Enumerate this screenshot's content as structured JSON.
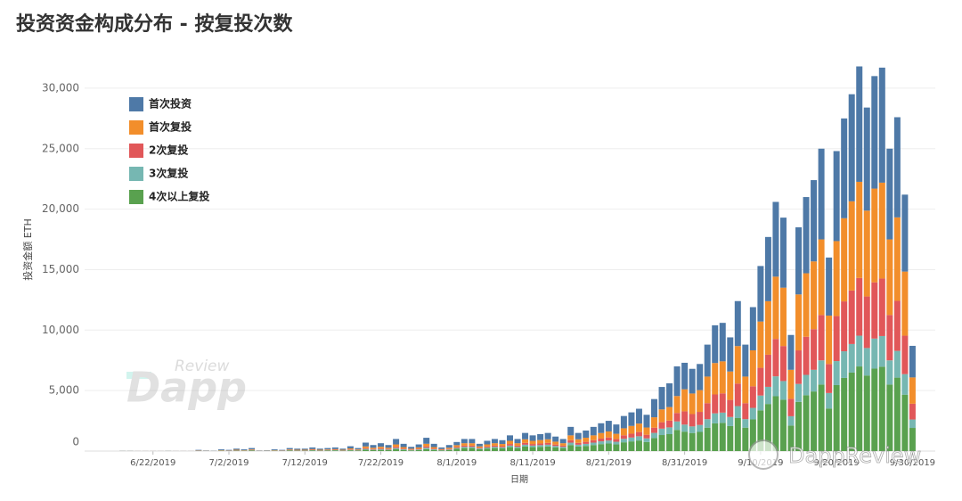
{
  "chart_data": {
    "type": "stacked-bar",
    "title": "投资资金构成分布 - 按复投次数",
    "x_label": "日期",
    "y_label": "投资金额 ETH",
    "watermarks": [
      "Review",
      "Dapp",
      "DappReview"
    ],
    "x": [
      "6/18/2019",
      "6/19/2019",
      "6/20/2019",
      "6/21/2019",
      "6/22/2019",
      "6/23/2019",
      "6/24/2019",
      "6/25/2019",
      "6/26/2019",
      "6/27/2019",
      "6/28/2019",
      "6/29/2019",
      "6/30/2019",
      "7/1/2019",
      "7/2/2019",
      "7/3/2019",
      "7/4/2019",
      "7/5/2019",
      "7/6/2019",
      "7/7/2019",
      "7/8/2019",
      "7/9/2019",
      "7/10/2019",
      "7/11/2019",
      "7/12/2019",
      "7/13/2019",
      "7/14/2019",
      "7/15/2019",
      "7/16/2019",
      "7/17/2019",
      "7/18/2019",
      "7/19/2019",
      "7/20/2019",
      "7/21/2019",
      "7/22/2019",
      "7/23/2019",
      "7/24/2019",
      "7/25/2019",
      "7/26/2019",
      "7/27/2019",
      "7/28/2019",
      "7/29/2019",
      "7/30/2019",
      "7/31/2019",
      "8/1/2019",
      "8/2/2019",
      "8/3/2019",
      "8/4/2019",
      "8/5/2019",
      "8/6/2019",
      "8/7/2019",
      "8/8/2019",
      "8/9/2019",
      "8/10/2019",
      "8/11/2019",
      "8/12/2019",
      "8/13/2019",
      "8/14/2019",
      "8/15/2019",
      "8/16/2019",
      "8/17/2019",
      "8/18/2019",
      "8/19/2019",
      "8/20/2019",
      "8/21/2019",
      "8/22/2019",
      "8/23/2019",
      "8/24/2019",
      "8/25/2019",
      "8/26/2019",
      "8/27/2019",
      "8/28/2019",
      "8/29/2019",
      "8/30/2019",
      "8/31/2019",
      "9/1/2019",
      "9/2/2019",
      "9/3/2019",
      "9/4/2019",
      "9/5/2019",
      "9/6/2019",
      "9/7/2019",
      "9/8/2019",
      "9/9/2019",
      "9/10/2019",
      "9/11/2019",
      "9/12/2019",
      "9/13/2019",
      "9/14/2019",
      "9/15/2019",
      "9/16/2019",
      "9/17/2019",
      "9/18/2019",
      "9/19/2019",
      "9/20/2019",
      "9/21/2019",
      "9/22/2019",
      "9/23/2019",
      "9/24/2019",
      "9/25/2019",
      "9/26/2019",
      "9/27/2019",
      "9/28/2019",
      "9/29/2019",
      "9/30/2019"
    ],
    "xlim": [
      "6/13/2019",
      "10/3/2019"
    ],
    "xticks": [
      "6/22/2019",
      "7/2/2019",
      "7/12/2019",
      "7/22/2019",
      "8/1/2019",
      "8/11/2019",
      "8/21/2019",
      "8/31/2019",
      "9/10/2019",
      "9/20/2019",
      "9/30/2019"
    ],
    "ylim": [
      0,
      32500
    ],
    "yticks": [
      0,
      {
        "value": 5000,
        "label": "5,000"
      },
      {
        "value": 10000,
        "label": "10,000"
      },
      {
        "value": 15000,
        "label": "15,000"
      },
      {
        "value": 20000,
        "label": "20,000"
      },
      {
        "value": 25000,
        "label": "25,000"
      },
      {
        "value": 30000,
        "label": "30,000"
      }
    ],
    "grid": true,
    "legend_position": "top-left",
    "series": [
      {
        "name": "首次投资",
        "color": "#4e79a7",
        "values": [
          9,
          9,
          4,
          4,
          4,
          4,
          9,
          4,
          4,
          4,
          45,
          22,
          14,
          68,
          45,
          90,
          68,
          112,
          22,
          27,
          68,
          45,
          112,
          90,
          90,
          135,
          90,
          112,
          135,
          90,
          180,
          112,
          315,
          225,
          292,
          225,
          450,
          270,
          158,
          248,
          495,
          270,
          135,
          225,
          262,
          350,
          350,
          210,
          298,
          350,
          315,
          455,
          350,
          525,
          455,
          490,
          525,
          420,
          350,
          700,
          525,
          595,
          700,
          805,
          875,
          770,
          1015,
          1120,
          1225,
          1050,
          1505,
          1855,
          1960,
          2450,
          2190,
          2040,
          2160,
          2640,
          3120,
          3180,
          2820,
          3720,
          2640,
          3570,
          4590,
          5310,
          6180,
          5790,
          2880,
          5550,
          6300,
          6720,
          7500,
          4800,
          7440,
          8250,
          8850,
          9540,
          8520,
          9300,
          9510,
          7500,
          8280,
          6360,
          2610
        ]
      },
      {
        "name": "首次复投",
        "color": "#f28e2b",
        "values": [
          4,
          4,
          2,
          2,
          2,
          2,
          4,
          2,
          2,
          2,
          20,
          10,
          6,
          30,
          20,
          40,
          30,
          50,
          10,
          12,
          30,
          20,
          50,
          40,
          40,
          60,
          40,
          50,
          60,
          40,
          80,
          50,
          140,
          100,
          130,
          100,
          200,
          120,
          70,
          110,
          220,
          120,
          60,
          100,
          150,
          200,
          200,
          120,
          170,
          200,
          180,
          260,
          200,
          300,
          260,
          280,
          300,
          240,
          200,
          400,
          300,
          340,
          400,
          460,
          500,
          440,
          580,
          640,
          700,
          600,
          860,
          1060,
          1120,
          1400,
          1825,
          1700,
          1800,
          2200,
          2600,
          2650,
          2350,
          3100,
          2200,
          2975,
          3825,
          4425,
          5150,
          4825,
          2400,
          4625,
          5250,
          5600,
          6250,
          4000,
          6200,
          6875,
          7375,
          7950,
          7100,
          7750,
          7925,
          6250,
          6900,
          5300,
          2175
        ]
      },
      {
        "name": "2次复投",
        "color": "#e15759",
        "values": [
          2,
          2,
          1,
          1,
          1,
          1,
          2,
          1,
          1,
          1,
          10,
          5,
          3,
          15,
          10,
          20,
          15,
          25,
          5,
          6,
          15,
          10,
          25,
          20,
          20,
          30,
          20,
          25,
          30,
          20,
          40,
          25,
          70,
          50,
          65,
          50,
          100,
          60,
          35,
          55,
          110,
          60,
          30,
          50,
          75,
          100,
          100,
          60,
          85,
          100,
          90,
          130,
          100,
          150,
          130,
          140,
          150,
          120,
          100,
          200,
          150,
          170,
          200,
          230,
          250,
          220,
          290,
          320,
          350,
          300,
          430,
          530,
          560,
          700,
          1095,
          1020,
          1080,
          1320,
          1560,
          1590,
          1410,
          1860,
          1320,
          1785,
          2295,
          2655,
          3090,
          2895,
          1440,
          2775,
          3150,
          3360,
          3750,
          2400,
          3720,
          4125,
          4425,
          4770,
          4260,
          4650,
          4755,
          3750,
          4140,
          3180,
          1305
        ]
      },
      {
        "name": "3次复投",
        "color": "#76b7b2",
        "values": [
          2,
          2,
          1,
          1,
          1,
          1,
          2,
          1,
          1,
          1,
          10,
          5,
          3,
          15,
          10,
          20,
          15,
          25,
          5,
          6,
          15,
          10,
          25,
          20,
          20,
          30,
          20,
          25,
          30,
          20,
          40,
          25,
          70,
          50,
          65,
          50,
          100,
          60,
          35,
          55,
          110,
          60,
          30,
          50,
          75,
          100,
          100,
          60,
          85,
          100,
          90,
          130,
          100,
          150,
          130,
          140,
          150,
          120,
          100,
          200,
          150,
          170,
          200,
          230,
          250,
          220,
          290,
          320,
          350,
          300,
          430,
          530,
          560,
          700,
          584,
          544,
          576,
          704,
          832,
          848,
          752,
          992,
          704,
          952,
          1224,
          1416,
          1648,
          1544,
          768,
          1480,
          1680,
          1792,
          2000,
          1280,
          1984,
          2200,
          2360,
          2544,
          2272,
          2480,
          2536,
          2000,
          2208,
          1696,
          696
        ]
      },
      {
        "name": "4次以上复投",
        "color": "#59a14f",
        "values": [
          3,
          3,
          2,
          2,
          2,
          2,
          3,
          2,
          2,
          2,
          15,
          8,
          4,
          22,
          15,
          30,
          22,
          38,
          8,
          9,
          22,
          15,
          38,
          30,
          30,
          45,
          30,
          38,
          45,
          30,
          60,
          38,
          105,
          75,
          98,
          75,
          150,
          90,
          52,
          82,
          165,
          90,
          45,
          75,
          188,
          250,
          250,
          150,
          212,
          250,
          225,
          325,
          250,
          375,
          325,
          350,
          375,
          300,
          250,
          500,
          375,
          425,
          500,
          575,
          625,
          550,
          725,
          800,
          875,
          750,
          1075,
          1325,
          1400,
          1750,
          1606,
          1496,
          1584,
          1936,
          2288,
          2332,
          2068,
          2728,
          1936,
          2618,
          3366,
          3894,
          4532,
          4246,
          2112,
          4070,
          4620,
          4928,
          5500,
          3520,
          5456,
          6050,
          6490,
          6996,
          6248,
          6820,
          6974,
          5500,
          6072,
          4664,
          1914
        ]
      }
    ]
  }
}
